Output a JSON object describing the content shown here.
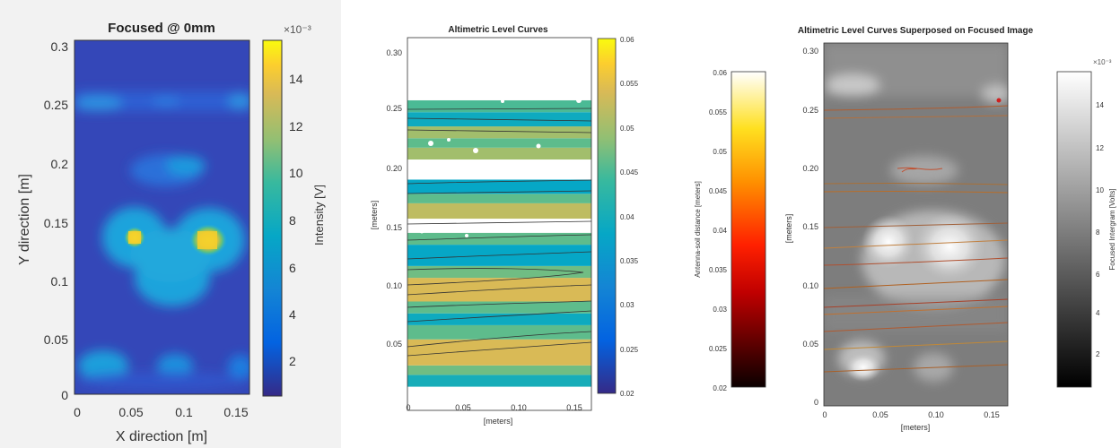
{
  "chart_data": [
    {
      "type": "heatmap",
      "title": "Focused @ 0mm",
      "xlabel": "X direction [m]",
      "ylabel": "Y direction [m]",
      "xlim": [
        0,
        0.165
      ],
      "ylim": [
        0,
        0.31
      ],
      "xticks": [
        "0",
        "0.05",
        "0.1",
        "0.15"
      ],
      "yticks": [
        "0",
        "0.05",
        "0.1",
        "0.15",
        "0.2",
        "0.25",
        "0.3"
      ],
      "colorbar": {
        "label": "Intensity [V]",
        "exponent": "×10⁻³",
        "range": [
          0.0005,
          0.0155
        ],
        "ticks": [
          "2",
          "4",
          "6",
          "8",
          "10",
          "12",
          "14"
        ],
        "colormap": "parula"
      },
      "hotspots": [
        {
          "x": 0.053,
          "y": 0.135,
          "value": 0.0135
        },
        {
          "x": 0.123,
          "y": 0.133,
          "value": 0.014
        },
        {
          "x": 0.1,
          "y": 0.12,
          "value": 0.0075
        },
        {
          "x": 0.1,
          "y": 0.195,
          "value": 0.006
        },
        {
          "x": 0.03,
          "y": 0.027,
          "value": 0.0065
        },
        {
          "x": 0.095,
          "y": 0.025,
          "value": 0.0058
        },
        {
          "x": 0.025,
          "y": 0.25,
          "value": 0.0048
        },
        {
          "x": 0.155,
          "y": 0.25,
          "value": 0.0045
        }
      ]
    },
    {
      "type": "heatmap",
      "title": "Altimetric Level Curves",
      "xlabel": "[meters]",
      "ylabel": "[meters]",
      "xlim": [
        0,
        0.165
      ],
      "ylim": [
        0,
        0.31
      ],
      "xticks": [
        "0",
        "0.05",
        "0.10",
        "0.15"
      ],
      "yticks": [
        "0.05",
        "0.10",
        "0.15",
        "0.20",
        "0.25",
        "0.30"
      ],
      "colorbar": {
        "range": [
          0.02,
          0.06
        ],
        "ticks": [
          "0.02",
          "0.025",
          "0.03",
          "0.035",
          "0.04",
          "0.045",
          "0.05",
          "0.055",
          "0.06"
        ],
        "colormap": "parula"
      },
      "bands": [
        {
          "y0": 0.02,
          "y1": 0.03,
          "value": 0.04
        },
        {
          "y0": 0.03,
          "y1": 0.038,
          "value": 0.047
        },
        {
          "y0": 0.038,
          "y1": 0.06,
          "value": 0.054
        },
        {
          "y0": 0.06,
          "y1": 0.072,
          "value": 0.046
        },
        {
          "y0": 0.072,
          "y1": 0.082,
          "value": 0.039
        },
        {
          "y0": 0.082,
          "y1": 0.092,
          "value": 0.046
        },
        {
          "y0": 0.092,
          "y1": 0.112,
          "value": 0.054
        },
        {
          "y0": 0.112,
          "y1": 0.122,
          "value": 0.047
        },
        {
          "y0": 0.122,
          "y1": 0.14,
          "value": 0.038
        },
        {
          "y0": 0.14,
          "y1": 0.15,
          "value": 0.046
        },
        {
          "y0": 0.15,
          "y1": 0.162,
          "value": null
        },
        {
          "y0": 0.162,
          "y1": 0.175,
          "value": 0.052
        },
        {
          "y0": 0.175,
          "y1": 0.183,
          "value": 0.046
        },
        {
          "y0": 0.183,
          "y1": 0.195,
          "value": 0.038
        },
        {
          "y0": 0.195,
          "y1": 0.212,
          "value": null
        },
        {
          "y0": 0.212,
          "y1": 0.222,
          "value": 0.05
        },
        {
          "y0": 0.222,
          "y1": 0.23,
          "value": 0.046
        },
        {
          "y0": 0.23,
          "y1": 0.24,
          "value": 0.05
        },
        {
          "y0": 0.24,
          "y1": 0.252,
          "value": 0.039
        },
        {
          "y0": 0.252,
          "y1": 0.262,
          "value": 0.045
        }
      ]
    },
    {
      "type": "heatmap",
      "title": "Altimetric Level Curves Superposed on Focused Image",
      "xlabel": "[meters]",
      "ylabel": "[meters]",
      "xlim": [
        0,
        0.165
      ],
      "ylim": [
        0,
        0.31
      ],
      "xticks": [
        "0",
        "0.05",
        "0.10",
        "0.15"
      ],
      "yticks": [
        "0",
        "0.05",
        "0.10",
        "0.15",
        "0.20",
        "0.25",
        "0.30"
      ],
      "colorbar_left": {
        "label": "Antenna-soil distance [meters]",
        "range": [
          0.02,
          0.06
        ],
        "ticks": [
          "0.02",
          "0.025",
          "0.03",
          "0.035",
          "0.04",
          "0.045",
          "0.05",
          "0.055",
          "0.06"
        ],
        "colormap": "hot"
      },
      "colorbar_right": {
        "label": "Focused Intergram [Volts]",
        "exponent": "×10⁻³",
        "range": [
          0.0005,
          0.0155
        ],
        "ticks": [
          "2",
          "4",
          "6",
          "8",
          "10",
          "12",
          "14"
        ],
        "colormap": "gray"
      },
      "contour_levels_y": [
        0.025,
        0.04,
        0.062,
        0.075,
        0.08,
        0.09,
        0.105,
        0.12,
        0.14,
        0.145,
        0.165,
        0.185,
        0.22,
        0.23,
        0.25
      ]
    }
  ]
}
